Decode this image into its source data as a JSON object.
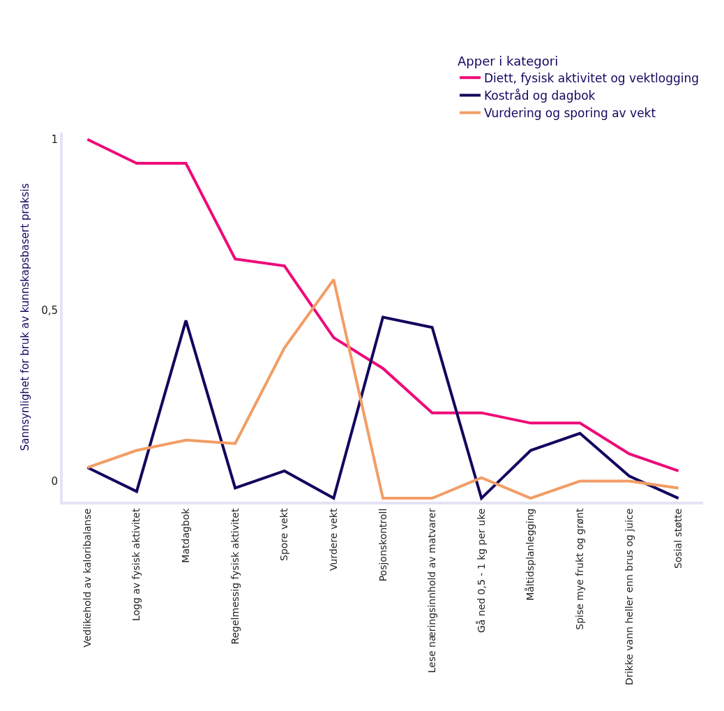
{
  "chart_data": {
    "type": "line",
    "ylabel": "Sannsynlighet for bruk av kunnskapsbasert praksis",
    "legend_title": "Apper i kategori",
    "categories": [
      "Vedlikehold av kaloribalanse",
      "Logg av fysisk aktivitet",
      "Matdagbok",
      "Regelmessig fysisk aktivitet",
      "Spore vekt",
      "Vurdere vekt",
      "Posjonskontroll",
      "Lese næringsinnhold av matvarer",
      "Gå ned 0,5 - 1 kg per uke",
      "Måltidsplanlegging",
      "Spise mye frukt og grønt",
      "Drikke vann heller enn brus og juice",
      "Sosial støtte"
    ],
    "series": [
      {
        "name": "Diett, fysisk aktivitet og vektlogging",
        "color": "#ee0a78",
        "values": [
          1.0,
          0.93,
          0.93,
          0.65,
          0.63,
          0.42,
          0.33,
          0.2,
          0.2,
          0.17,
          0.17,
          0.08,
          0.03
        ]
      },
      {
        "name": "Kostråd og dagbok",
        "color": "#12055e",
        "values": [
          0.04,
          -0.03,
          0.47,
          -0.02,
          0.03,
          -0.05,
          0.48,
          0.45,
          -0.05,
          0.09,
          0.14,
          0.015,
          -0.05
        ]
      },
      {
        "name": "Vurdering og sporing av vekt",
        "color": "#f29d65",
        "values": [
          0.04,
          0.09,
          0.12,
          0.11,
          0.39,
          0.59,
          -0.05,
          -0.05,
          0.01,
          -0.05,
          0.0,
          0.0,
          -0.02
        ]
      }
    ],
    "ylim": [
      -0.06,
      1.02
    ],
    "yticks": [
      {
        "value": 0,
        "label": "0"
      },
      {
        "value": 0.5,
        "label": "0,5"
      },
      {
        "value": 1,
        "label": "1"
      }
    ],
    "legend": "top right",
    "marker": "none",
    "line_style": "solid"
  }
}
